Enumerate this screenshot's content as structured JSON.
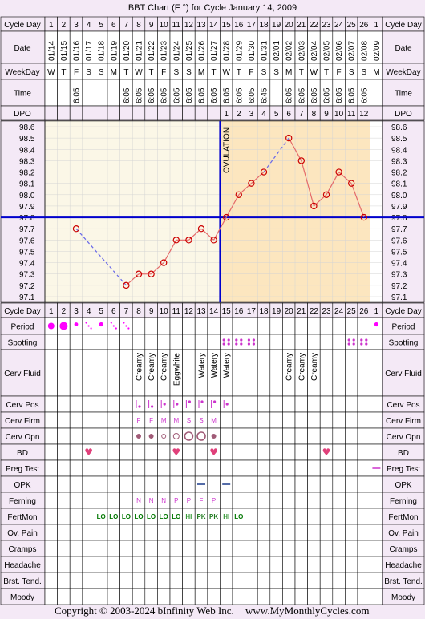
{
  "title": "BBT Chart (F °) for Cycle January 14, 2009",
  "copyright": "Copyright © 2003-2024 bInfinity Web Inc.",
  "site": "www.MyMonthlyCycles.com",
  "colors": {
    "page_bg": "#f4e9f6",
    "cell_bg": "#ffffff",
    "pre_ovulation_bg": "#fbf7e7",
    "post_ovulation_bg": "#fce6bf",
    "grid": "#d4d4d4",
    "line": "#000000",
    "temp_line": "#e46a6a",
    "marker": "#cc0000",
    "gap_line": "#6a6ae8",
    "coverline": "#0000cc",
    "period": "#ff00ff",
    "spotting": "#cc33cc",
    "fertility_low": "#007700",
    "pink_text": "#cc33cc"
  },
  "row_labels": {
    "cycle_day": "Cycle Day",
    "date": "Date",
    "weekday": "WeekDay",
    "time": "Time",
    "dpo": "DPO",
    "period": "Period",
    "spotting": "Spotting",
    "cerv_fluid": "Cerv Fluid",
    "cerv_pos": "Cerv Pos",
    "cerv_firm": "Cerv Firm",
    "cerv_opn": "Cerv Opn",
    "bd": "BD",
    "preg_test": "Preg Test",
    "opk": "OPK",
    "ferning": "Ferning",
    "fertmon": "FertMon",
    "ov_pain": "Ov. Pain",
    "cramps": "Cramps",
    "headache": "Headache",
    "brst_tend": "Brst. Tend.",
    "moody": "Moody"
  },
  "cycle_days": [
    "1",
    "2",
    "3",
    "4",
    "5",
    "6",
    "7",
    "8",
    "9",
    "10",
    "11",
    "12",
    "13",
    "14",
    "15",
    "16",
    "17",
    "18",
    "19",
    "20",
    "21",
    "22",
    "23",
    "24",
    "25",
    "26",
    "1"
  ],
  "dates": [
    "01/14",
    "01/15",
    "01/16",
    "01/17",
    "01/18",
    "01/19",
    "01/20",
    "01/21",
    "01/22",
    "01/23",
    "01/24",
    "01/25",
    "01/26",
    "01/27",
    "01/28",
    "01/29",
    "01/30",
    "01/31",
    "02/01",
    "02/02",
    "02/03",
    "02/04",
    "02/05",
    "02/06",
    "02/07",
    "02/08",
    "02/09"
  ],
  "weekdays": [
    "W",
    "T",
    "F",
    "S",
    "S",
    "M",
    "T",
    "W",
    "T",
    "F",
    "S",
    "S",
    "M",
    "T",
    "W",
    "T",
    "F",
    "S",
    "S",
    "M",
    "T",
    "W",
    "T",
    "F",
    "S",
    "S",
    "M"
  ],
  "times": [
    "",
    "",
    "6:05",
    "",
    "",
    "",
    "6:05",
    "6:05",
    "6:05",
    "6:05",
    "6:05",
    "6:05",
    "6:05",
    "6:05",
    "6:05",
    "6:05",
    "6:05",
    "6:45",
    "",
    "6:05",
    "6:05",
    "6:05",
    "6:05",
    "6:05",
    "6:05",
    "6:05",
    ""
  ],
  "dpo": [
    "",
    "",
    "",
    "",
    "",
    "",
    "",
    "",
    "",
    "",
    "",
    "",
    "",
    "",
    "1",
    "2",
    "3",
    "4",
    "5",
    "6",
    "7",
    "8",
    "9",
    "10",
    "11",
    "12",
    ""
  ],
  "ovulation_label": "OVULATION",
  "chart_data": {
    "type": "line",
    "x": [
      1,
      2,
      3,
      4,
      5,
      6,
      7,
      8,
      9,
      10,
      11,
      12,
      13,
      14,
      15,
      16,
      17,
      18,
      19,
      20,
      21,
      22,
      23,
      24,
      25,
      26,
      27
    ],
    "values": [
      null,
      null,
      97.7,
      null,
      null,
      null,
      97.2,
      97.3,
      97.3,
      97.4,
      97.6,
      97.6,
      97.7,
      97.6,
      97.8,
      98.0,
      98.1,
      98.2,
      null,
      98.5,
      98.3,
      97.9,
      98.0,
      98.2,
      98.1,
      97.8,
      null
    ],
    "ylim": [
      97.1,
      98.6
    ],
    "yticks": [
      "98.6",
      "98.5",
      "98.4",
      "98.3",
      "98.2",
      "98.1",
      "98.0",
      "97.9",
      "97.8",
      "97.7",
      "97.6",
      "97.5",
      "97.4",
      "97.3",
      "97.2",
      "97.1"
    ],
    "coverline": 97.8,
    "ovulation_day": 14,
    "grid": true
  },
  "period": [
    "heavy",
    "heavy",
    "medium",
    "spot-dots",
    "light",
    "spot-dots",
    "spot-dots",
    "",
    "",
    "",
    "",
    "",
    "",
    "",
    "",
    "",
    "",
    "",
    "",
    "",
    "",
    "",
    "",
    "",
    "",
    "",
    "light"
  ],
  "spotting": [
    "",
    "",
    "",
    "",
    "",
    "",
    "",
    "",
    "",
    "",
    "",
    "",
    "",
    "",
    "yes",
    "yes",
    "yes",
    "",
    "",
    "",
    "",
    "",
    "",
    "",
    "yes",
    "yes",
    ""
  ],
  "cerv_fluid": [
    "",
    "",
    "",
    "",
    "",
    "",
    "",
    "Creamy",
    "Creamy",
    "Creamy",
    "Eggwhite",
    "",
    "Watery",
    "Watery",
    "Watery",
    "",
    "",
    "",
    "",
    "Creamy",
    "Creamy",
    "Creamy",
    "",
    "",
    "",
    "",
    ""
  ],
  "cerv_pos": [
    "",
    "",
    "",
    "",
    "",
    "",
    "",
    "low",
    "low",
    "mid",
    "mid",
    "high",
    "high",
    "high",
    "mid",
    "",
    "",
    "",
    "",
    "",
    "",
    "",
    "",
    "",
    "",
    "",
    ""
  ],
  "cerv_firm": [
    "",
    "",
    "",
    "",
    "",
    "",
    "",
    "F",
    "F",
    "M",
    "M",
    "S",
    "S",
    "M",
    "",
    "",
    "",
    "",
    "",
    "",
    "",
    "",
    "",
    "",
    "",
    "",
    ""
  ],
  "cerv_opn": [
    "",
    "",
    "",
    "",
    "",
    "",
    "",
    "closed",
    "closed",
    "small",
    "medium",
    "large",
    "large",
    "closed",
    "",
    "",
    "",
    "",
    "",
    "",
    "",
    "",
    "",
    "",
    "",
    "",
    ""
  ],
  "bd": [
    "",
    "",
    "",
    "yes",
    "",
    "",
    "",
    "",
    "",
    "",
    "yes",
    "",
    "",
    "yes",
    "",
    "",
    "",
    "",
    "",
    "",
    "",
    "",
    "yes",
    "",
    "",
    "",
    ""
  ],
  "preg_test": [
    "",
    "",
    "",
    "",
    "",
    "",
    "",
    "",
    "",
    "",
    "",
    "",
    "",
    "",
    "",
    "",
    "",
    "",
    "",
    "",
    "",
    "",
    "",
    "",
    "",
    "",
    "negative"
  ],
  "opk": [
    "",
    "",
    "",
    "",
    "",
    "",
    "",
    "",
    "",
    "",
    "",
    "",
    "negative",
    "",
    "negative",
    "",
    "",
    "",
    "",
    "",
    "",
    "",
    "",
    "",
    "",
    "",
    ""
  ],
  "ferning": [
    "",
    "",
    "",
    "",
    "",
    "",
    "",
    "N",
    "N",
    "N",
    "P",
    "P",
    "F",
    "P",
    "",
    "",
    "",
    "",
    "",
    "",
    "",
    "",
    "",
    "",
    "",
    "",
    ""
  ],
  "fertmon": [
    "",
    "",
    "",
    "",
    "LO",
    "LO",
    "LO",
    "LO",
    "LO",
    "LO",
    "LO",
    "HI",
    "PK",
    "PK",
    "HI",
    "LO",
    "",
    "",
    "",
    "",
    "",
    "",
    "",
    "",
    "",
    "",
    ""
  ]
}
